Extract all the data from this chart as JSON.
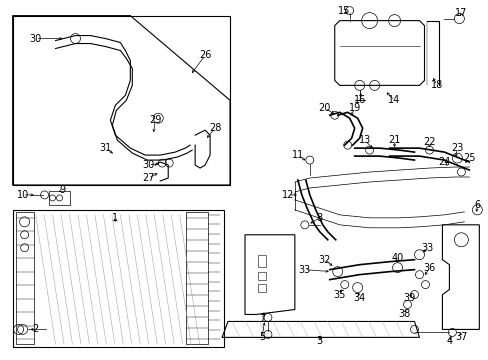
{
  "bg_color": "#ffffff",
  "fig_width": 4.89,
  "fig_height": 3.6,
  "dpi": 100
}
